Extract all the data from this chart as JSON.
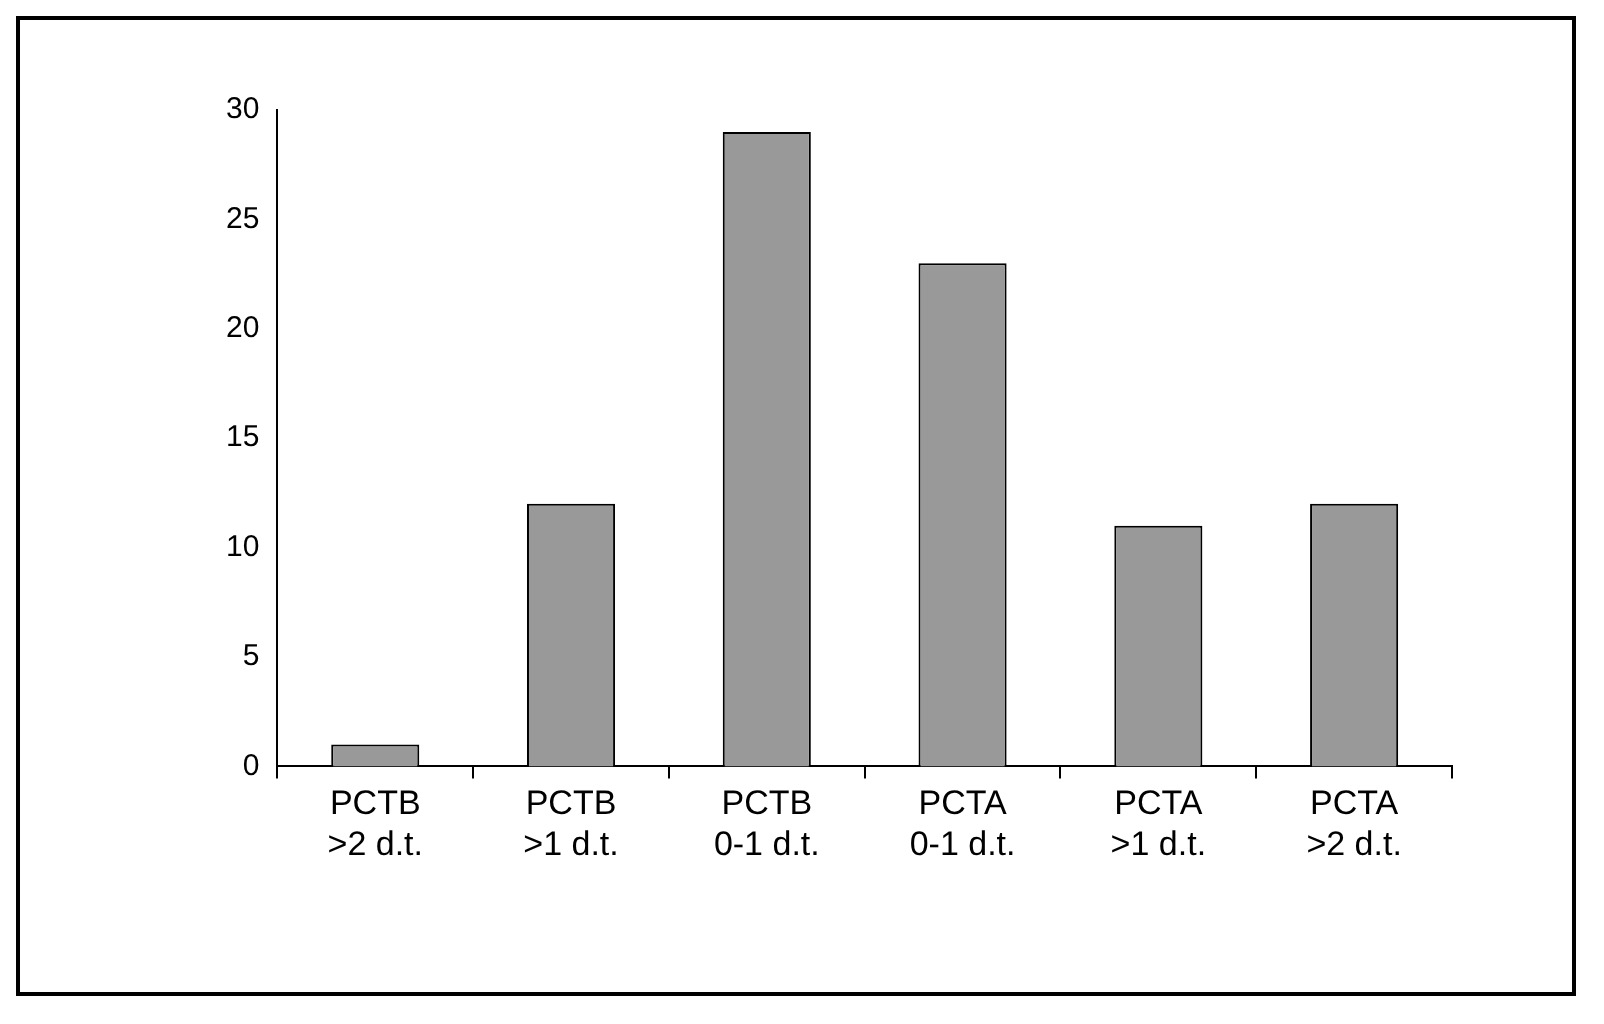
{
  "chart_data": {
    "type": "bar",
    "categories": [
      "PCTB >2 d.t.",
      "PCTB >1 d.t.",
      "PCTB 0-1 d.t.",
      "PCTA 0-1 d.t.",
      "PCTA >1 d.t.",
      "PCTA >2 d.t."
    ],
    "values": [
      1,
      12,
      29,
      23,
      11,
      12
    ],
    "color": "#999999",
    "ylim": [
      0,
      30
    ],
    "yticks": [
      0,
      5,
      10,
      15,
      20,
      25,
      30
    ],
    "grid": false,
    "legend": false
  }
}
